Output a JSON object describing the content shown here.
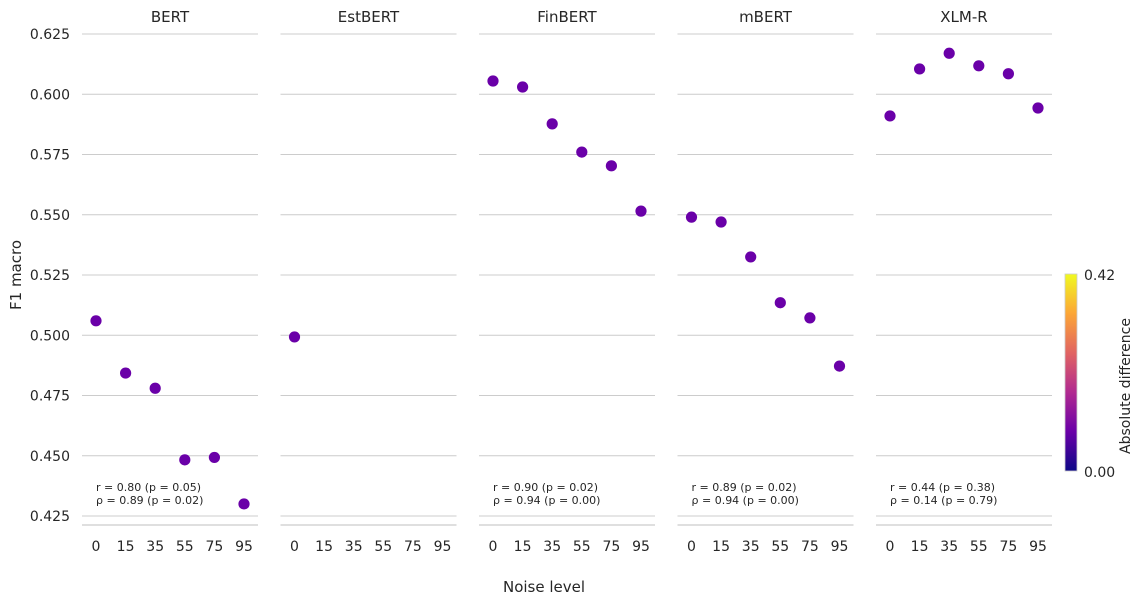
{
  "chart_data": {
    "type": "scatter",
    "ylabel": "F1 macro",
    "xlabel": "Noise level",
    "x_categories": [
      "0",
      "15",
      "35",
      "55",
      "75",
      "95"
    ],
    "yticks": [
      "0.425",
      "0.450",
      "0.475",
      "0.500",
      "0.525",
      "0.550",
      "0.575",
      "0.600",
      "0.625"
    ],
    "ylim": [
      0.4205,
      0.6255
    ],
    "grid": "horizontal",
    "point_color": "#6a00a8",
    "panels": [
      {
        "title": "BERT",
        "values": [
          0.506,
          0.4843,
          0.478,
          0.4483,
          0.4493,
          0.43
        ],
        "annotation_r": "r = 0.80 (p = 0.05)",
        "annotation_rho": "ρ = 0.89 (p = 0.02)"
      },
      {
        "title": "EstBERT",
        "values": [
          0.4993,
          null,
          null,
          null,
          null,
          null
        ],
        "annotation_r": "",
        "annotation_rho": ""
      },
      {
        "title": "FinBERT",
        "values": [
          0.6055,
          0.603,
          0.5877,
          0.576,
          0.5703,
          0.5515
        ],
        "annotation_r": "r = 0.90 (p = 0.02)",
        "annotation_rho": "ρ = 0.94 (p = 0.00)"
      },
      {
        "title": "mBERT",
        "values": [
          0.549,
          0.547,
          0.5325,
          0.5135,
          0.5072,
          0.4872
        ],
        "annotation_r": "r = 0.89 (p = 0.02)",
        "annotation_rho": "ρ = 0.94 (p = 0.00)"
      },
      {
        "title": "XLM-R",
        "values": [
          0.591,
          0.6105,
          0.617,
          0.6118,
          0.6085,
          0.5943
        ],
        "annotation_r": "r = 0.44 (p = 0.38)",
        "annotation_rho": "ρ = 0.14 (p = 0.79)"
      }
    ],
    "colorbar": {
      "label": "Absolute  difference",
      "min_label": "0.00",
      "max_label": "0.42",
      "colormap": [
        "#0d0887",
        "#6a00a8",
        "#b12a90",
        "#e16462",
        "#fca636",
        "#f0f921"
      ]
    }
  }
}
